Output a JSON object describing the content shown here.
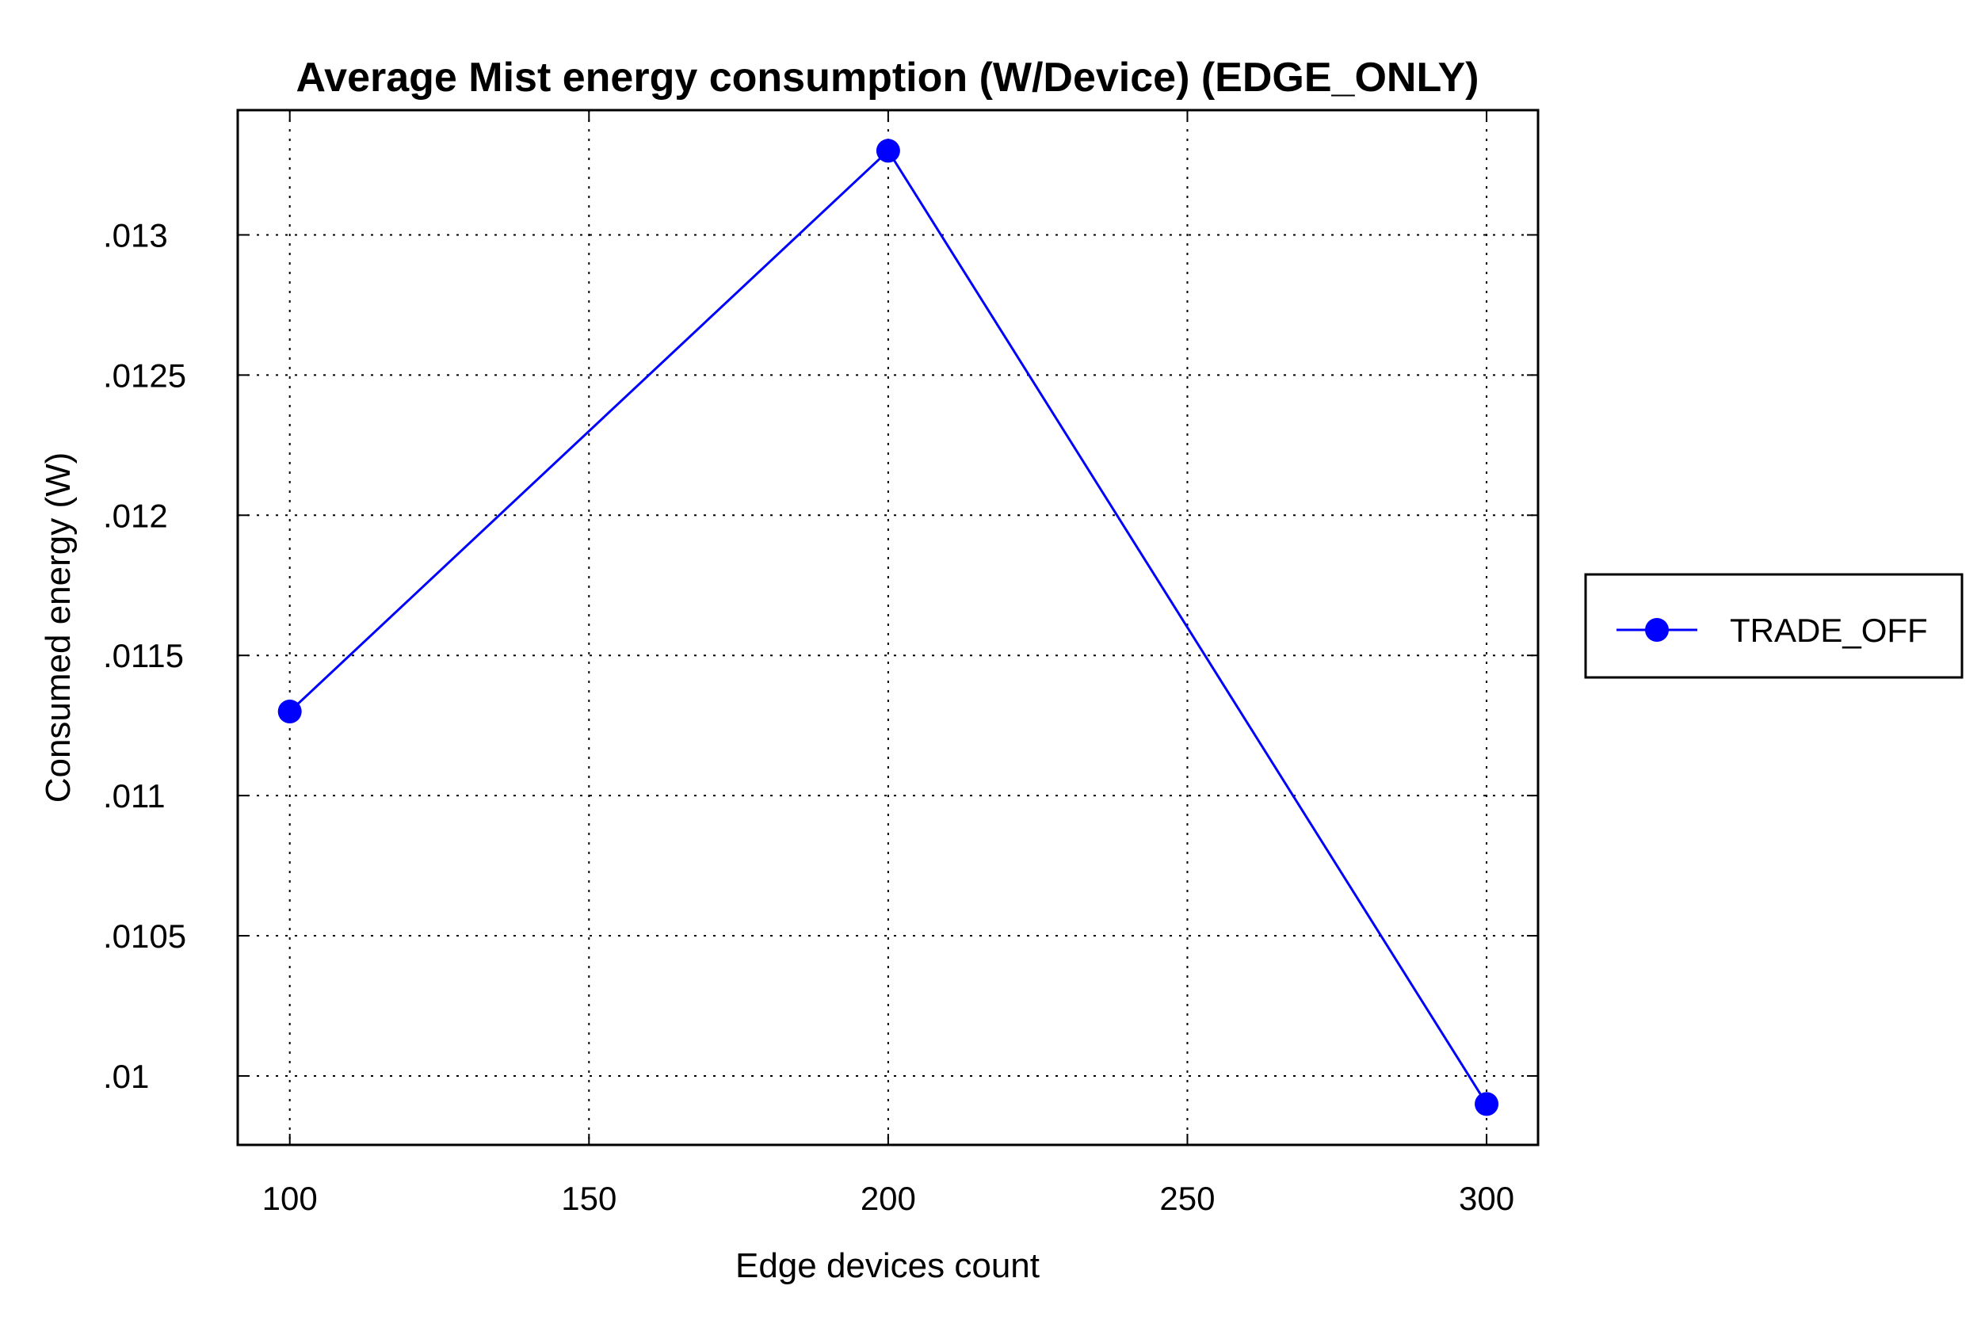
{
  "chart_data": {
    "type": "line",
    "title": "Average Mist energy consumption (W/Device) (EDGE_ONLY)",
    "xlabel": "Edge devices count",
    "ylabel": "Consumed energy (W)",
    "xlim": [
      91.3,
      308.6
    ],
    "ylim": [
      0.009754,
      0.013445
    ],
    "x_ticks": [
      100,
      150,
      200,
      250,
      300
    ],
    "x_tick_labels": [
      "100",
      "150",
      "200",
      "250",
      "300"
    ],
    "y_ticks": [
      0.01,
      0.0105,
      0.011,
      0.0115,
      0.012,
      0.0125,
      0.013
    ],
    "y_tick_labels": [
      ".01",
      ".0105",
      ".011",
      ".0115",
      ".012",
      ".0125",
      ".013"
    ],
    "grid": true,
    "legend_position": "right",
    "series": [
      {
        "name": "TRADE_OFF",
        "color": "#0000ff",
        "marker": "circle",
        "x": [
          100,
          200,
          300
        ],
        "values": [
          0.0113,
          0.0133,
          0.0099
        ]
      }
    ]
  }
}
